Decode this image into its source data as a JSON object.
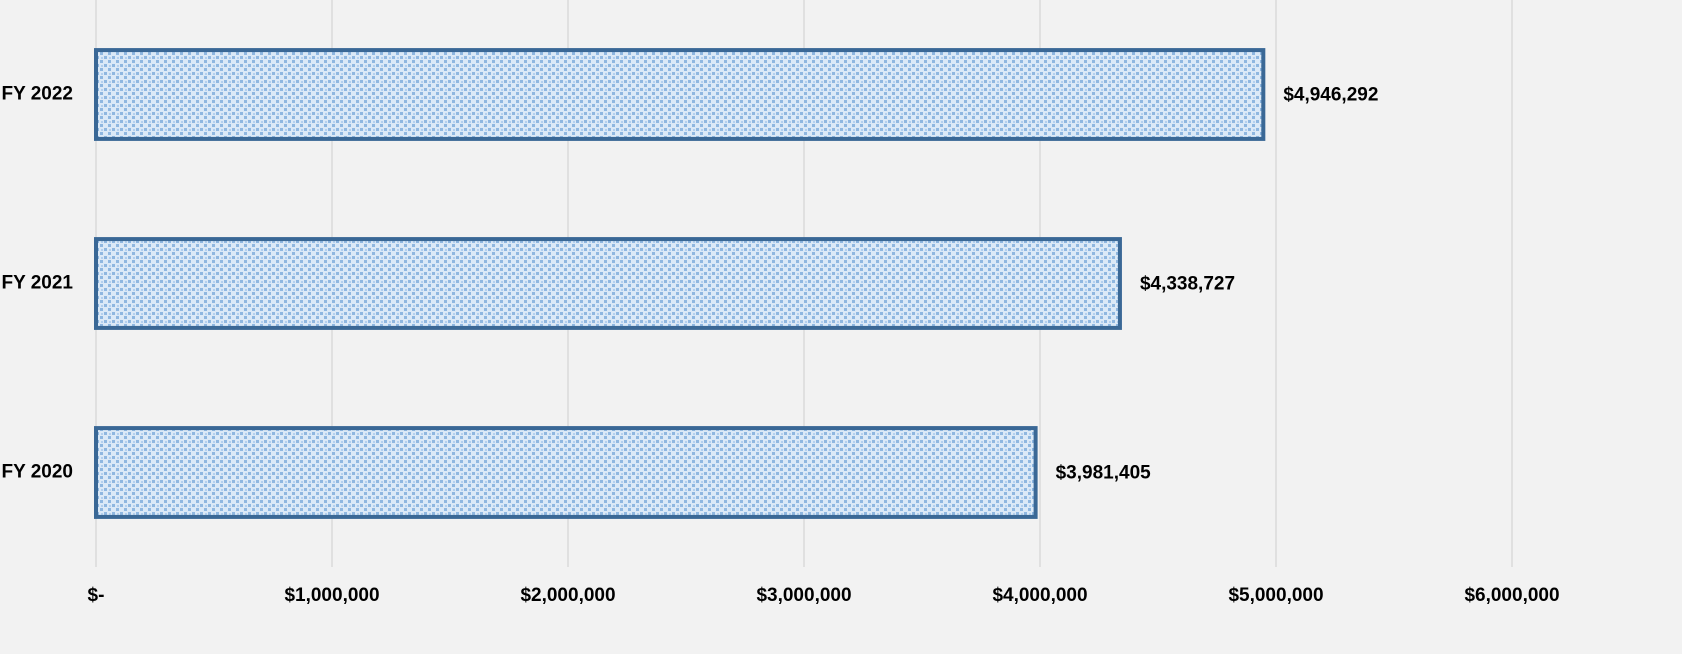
{
  "chart_data": {
    "type": "barh",
    "categories": [
      "FY 2022",
      "FY 2021",
      "FY 2020"
    ],
    "values": [
      4946292,
      4338727,
      3981405
    ],
    "value_labels": [
      "$4,946,292",
      "$4,338,727",
      "$3,981,405"
    ],
    "color": "#a9c9ea",
    "edge_color": "#3a6896",
    "xlim": [
      0,
      6000000
    ],
    "xticks": [
      {
        "value": 0,
        "label": "$-"
      },
      {
        "value": 1000000,
        "label": "$1,000,000"
      },
      {
        "value": 2000000,
        "label": "$2,000,000"
      },
      {
        "value": 3000000,
        "label": "$3,000,000"
      },
      {
        "value": 4000000,
        "label": "$4,000,000"
      },
      {
        "value": 5000000,
        "label": "$5,000,000"
      },
      {
        "value": 6000000,
        "label": "$6,000,000"
      }
    ],
    "grid": true
  }
}
